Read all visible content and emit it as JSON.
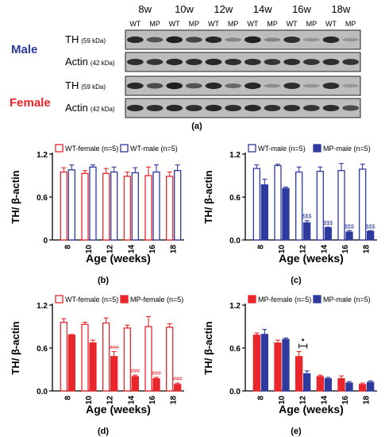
{
  "colors": {
    "male": "#2e3a9e",
    "female": "#e8262b",
    "blot_bg": "#bdbdbd",
    "band": "#111111"
  },
  "blot": {
    "ages": [
      "8w",
      "10w",
      "12w",
      "14w",
      "16w",
      "18w"
    ],
    "lane_labels": [
      "WT",
      "MP",
      "WT",
      "MP",
      "WT",
      "MP",
      "WT",
      "MP",
      "WT",
      "MP",
      "WT",
      "MP"
    ],
    "sex_male": "Male",
    "sex_female": "Female",
    "rows": [
      {
        "protein": "TH",
        "kda": "(59 kDa)",
        "intensity": [
          0.85,
          0.55,
          0.9,
          0.65,
          0.85,
          0.2,
          0.9,
          0.2,
          0.8,
          0.1,
          0.85,
          0.1
        ]
      },
      {
        "protein": "Actin",
        "kda": "(42 kDa)",
        "intensity": [
          0.8,
          0.75,
          0.85,
          0.8,
          0.85,
          0.8,
          0.8,
          0.75,
          0.8,
          0.75,
          0.8,
          0.75
        ]
      },
      {
        "protein": "TH",
        "kda": "(59 kDa)",
        "intensity": [
          0.85,
          0.6,
          0.9,
          0.55,
          0.85,
          0.4,
          0.85,
          0.15,
          0.8,
          0.1,
          0.8,
          0.08
        ]
      },
      {
        "protein": "Actin",
        "kda": "(42 kDa)",
        "intensity": [
          0.85,
          0.8,
          0.85,
          0.8,
          0.85,
          0.8,
          0.85,
          0.8,
          0.8,
          0.75,
          0.8,
          0.6
        ]
      }
    ],
    "caption": "(a)"
  },
  "chart_data": [
    {
      "type": "bar",
      "panel": "(b)",
      "categories": [
        "8",
        "10",
        "12",
        "14",
        "16",
        "18"
      ],
      "xlabel": "Age (weeks)",
      "ylabel": "TH/ β-actin",
      "ylim": [
        0,
        1.2
      ],
      "yticks": [
        "0",
        "0.6",
        "1.2"
      ],
      "series": [
        {
          "name": "WT-female (n=5)",
          "color": "#e8262b",
          "style": "open",
          "values": [
            0.95,
            0.93,
            0.93,
            0.89,
            0.9,
            0.89
          ],
          "errors": [
            0.06,
            0.04,
            0.07,
            0.06,
            0.12,
            0.06
          ],
          "marks": [
            "",
            "",
            "",
            "",
            "",
            ""
          ]
        },
        {
          "name": "WT-male (n=5)",
          "color": "#2e3a9e",
          "style": "open",
          "values": [
            0.98,
            1.02,
            0.95,
            0.94,
            0.95,
            0.97
          ],
          "errors": [
            0.07,
            0.03,
            0.07,
            0.07,
            0.1,
            0.08
          ],
          "marks": [
            "",
            "",
            "",
            "",
            "",
            ""
          ]
        }
      ],
      "legend": "top"
    },
    {
      "type": "bar",
      "panel": "(c)",
      "categories": [
        "8",
        "10",
        "12",
        "14",
        "16",
        "18"
      ],
      "xlabel": "Age (weeks)",
      "ylabel": "TH/ β-actin",
      "ylim": [
        0,
        1.2
      ],
      "yticks": [
        "0.0",
        "0.6",
        "1.2"
      ],
      "series": [
        {
          "name": "WT-male (n=5)",
          "color": "#2e3a9e",
          "style": "open",
          "values": [
            1.0,
            1.04,
            0.95,
            0.96,
            0.97,
            0.99
          ],
          "errors": [
            0.05,
            0.02,
            0.07,
            0.06,
            0.1,
            0.07
          ],
          "marks": [
            "",
            "",
            "",
            "",
            "",
            ""
          ]
        },
        {
          "name": "MP-male (n=5)",
          "color": "#2e3a9e",
          "style": "filled",
          "values": [
            0.77,
            0.72,
            0.24,
            0.17,
            0.11,
            0.12
          ],
          "errors": [
            0.08,
            0.02,
            0.03,
            0.01,
            0.02,
            0.01
          ],
          "marks": [
            "",
            "",
            "$$$",
            "$$$",
            "$$$",
            "$$$"
          ]
        }
      ],
      "legend": "top"
    },
    {
      "type": "bar",
      "panel": "(d)",
      "categories": [
        "8",
        "10",
        "12",
        "14",
        "16",
        "18"
      ],
      "xlabel": "Age (weeks)",
      "ylabel": "TH/ β-actin",
      "ylim": [
        0,
        1.2
      ],
      "yticks": [
        "0.0",
        "0.6",
        "1.2"
      ],
      "series": [
        {
          "name": "WT-female (n=5)",
          "color": "#e8262b",
          "style": "open",
          "values": [
            0.96,
            0.93,
            0.95,
            0.88,
            0.9,
            0.89
          ],
          "errors": [
            0.05,
            0.03,
            0.07,
            0.04,
            0.14,
            0.05
          ],
          "marks": [
            "",
            "",
            "",
            "",
            "",
            ""
          ]
        },
        {
          "name": "MP-female (n=5)",
          "color": "#e8262b",
          "style": "filled",
          "values": [
            0.78,
            0.67,
            0.48,
            0.2,
            0.17,
            0.09
          ],
          "errors": [
            0.01,
            0.04,
            0.07,
            0.02,
            0.02,
            0.02
          ],
          "marks": [
            "",
            "",
            "###",
            "###",
            "###",
            "###"
          ]
        }
      ],
      "legend": "top"
    },
    {
      "type": "bar",
      "panel": "(e)",
      "categories": [
        "8",
        "10",
        "12",
        "14",
        "16",
        "18"
      ],
      "xlabel": "Age (weeks)",
      "ylabel": "TH/ β-actin",
      "ylim": [
        0,
        1.2
      ],
      "yticks": [
        "0.0",
        "0.6",
        "1.2"
      ],
      "series": [
        {
          "name": "MP-female (n=5)",
          "color": "#e8262b",
          "style": "filled",
          "values": [
            0.78,
            0.67,
            0.48,
            0.2,
            0.17,
            0.09
          ],
          "errors": [
            0.03,
            0.04,
            0.07,
            0.02,
            0.04,
            0.02
          ],
          "marks": [
            "",
            "",
            "",
            "",
            "",
            ""
          ]
        },
        {
          "name": "MP-male (n=5)",
          "color": "#2e3a9e",
          "style": "filled",
          "values": [
            0.79,
            0.72,
            0.24,
            0.17,
            0.11,
            0.12
          ],
          "errors": [
            0.07,
            0.02,
            0.04,
            0.02,
            0.02,
            0.02
          ],
          "marks": [
            "",
            "",
            "",
            "",
            "",
            ""
          ]
        }
      ],
      "significance": {
        "category": "12",
        "label": "*"
      },
      "legend": "top"
    }
  ]
}
